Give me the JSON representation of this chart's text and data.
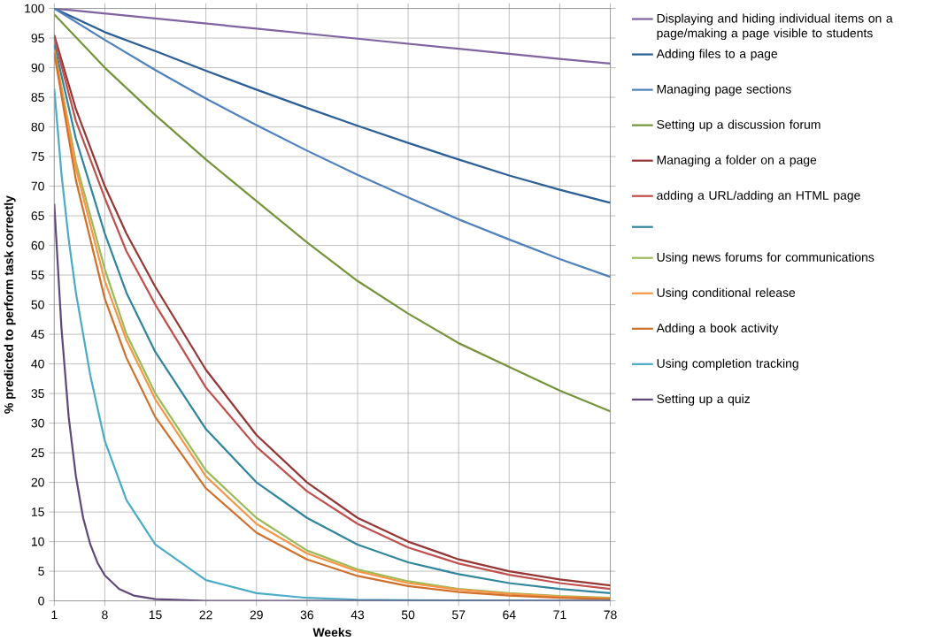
{
  "chart_data": {
    "type": "line",
    "xlabel": "Weeks",
    "ylabel": "% predicted to perform task correctly",
    "xlim": [
      1,
      78
    ],
    "xticks": [
      1,
      8,
      15,
      22,
      29,
      36,
      43,
      50,
      57,
      64,
      71,
      78
    ],
    "ylim": [
      0,
      100
    ],
    "yticks": [
      0,
      5,
      10,
      15,
      20,
      25,
      30,
      35,
      40,
      45,
      50,
      55,
      60,
      65,
      70,
      75,
      80,
      85,
      90,
      95,
      100
    ],
    "grid": true,
    "legend": "right",
    "marker": "none",
    "line_style": "solid",
    "series": [
      {
        "name": "Displaying and hiding individual items on a page/making a page visible to students",
        "color": "#8064a2",
        "x": [
          1,
          15,
          29,
          43,
          57,
          71,
          78
        ],
        "values": [
          100,
          98.3,
          96.6,
          94.9,
          93.2,
          91.5,
          90.7
        ]
      },
      {
        "name": "Adding files to a page",
        "color": "#2c5f96",
        "x": [
          1,
          8,
          15,
          22,
          29,
          36,
          43,
          50,
          57,
          64,
          71,
          78
        ],
        "values": [
          100,
          96,
          92.8,
          89.5,
          86.3,
          83.2,
          80.2,
          77.3,
          74.5,
          71.8,
          69.4,
          67.2
        ]
      },
      {
        "name": "Managing page sections",
        "color": "#4f81bd",
        "x": [
          1,
          8,
          15,
          22,
          29,
          36,
          43,
          50,
          57,
          64,
          71,
          78
        ],
        "values": [
          100,
          94.7,
          89.6,
          84.8,
          80.3,
          76,
          71.9,
          68.1,
          64.4,
          61,
          57.7,
          54.7
        ]
      },
      {
        "name": "Setting up a discussion forum",
        "color": "#77933c",
        "x": [
          1,
          8,
          15,
          22,
          29,
          36,
          43,
          50,
          57,
          64,
          71,
          78
        ],
        "values": [
          99,
          90,
          82,
          74.5,
          67.5,
          60.5,
          54,
          48.5,
          43.5,
          39.5,
          35.5,
          32
        ]
      },
      {
        "name": "Managing a folder on a page",
        "color": "#953735",
        "x": [
          1,
          4,
          8,
          11,
          15,
          22,
          29,
          36,
          43,
          50,
          57,
          64,
          71,
          78
        ],
        "values": [
          95.5,
          83,
          70,
          62,
          53,
          39,
          28,
          20,
          14,
          10,
          7,
          5,
          3.6,
          2.6
        ]
      },
      {
        "name": "adding a URL/adding an HTML page",
        "color": "#c0504d",
        "x": [
          1,
          4,
          8,
          11,
          15,
          22,
          29,
          36,
          43,
          50,
          57,
          64,
          71,
          78
        ],
        "values": [
          95,
          81,
          68,
          59,
          50,
          36,
          26,
          18.5,
          13,
          9,
          6.3,
          4.4,
          3,
          2
        ]
      },
      {
        "color": "#31859c",
        "x": [
          1,
          4,
          8,
          11,
          15,
          22,
          29,
          36,
          43,
          50,
          57,
          64,
          71,
          78
        ],
        "values": [
          94,
          78,
          62,
          52,
          42,
          29,
          20,
          14,
          9.5,
          6.5,
          4.5,
          3,
          2,
          1.3
        ]
      },
      {
        "name": "Using news forums for communications",
        "color": "#9bbb59",
        "x": [
          1,
          4,
          8,
          11,
          15,
          22,
          29,
          36,
          43,
          50,
          57,
          64,
          71,
          78
        ],
        "values": [
          93,
          74,
          56,
          45,
          35,
          22,
          14,
          8.5,
          5.3,
          3.3,
          2,
          1.3,
          0.8,
          0.5
        ]
      },
      {
        "name": "Using conditional release",
        "color": "#f79646",
        "x": [
          1,
          4,
          8,
          11,
          15,
          22,
          29,
          36,
          43,
          50,
          57,
          64,
          71,
          78
        ],
        "values": [
          93,
          73,
          54,
          44,
          34,
          21,
          13,
          8,
          5,
          3,
          1.9,
          1.2,
          0.7,
          0.4
        ]
      },
      {
        "name": "Adding a book activity",
        "color": "#d0702a",
        "x": [
          1,
          4,
          8,
          11,
          15,
          22,
          29,
          36,
          43,
          50,
          57,
          64,
          71,
          78
        ],
        "values": [
          92.5,
          71,
          51,
          41,
          31,
          19,
          11.5,
          7,
          4.2,
          2.5,
          1.5,
          0.9,
          0.5,
          0.3
        ]
      },
      {
        "name": "Using completion tracking",
        "color": "#4bacc6",
        "x": [
          1,
          2,
          3,
          4,
          6,
          8,
          11,
          15,
          22,
          29,
          36,
          43,
          50,
          78
        ],
        "values": [
          86.5,
          72,
          61,
          52,
          38,
          27,
          17,
          9.5,
          3.5,
          1.3,
          0.5,
          0.2,
          0.1,
          0
        ]
      },
      {
        "name": "Setting up a quiz",
        "color": "#5f497a",
        "x": [
          1,
          2,
          3,
          4,
          5,
          6,
          7,
          8,
          10,
          12,
          15,
          22,
          78
        ],
        "values": [
          67,
          46,
          31,
          21,
          14,
          9.5,
          6.4,
          4.3,
          2,
          0.9,
          0.3,
          0,
          0
        ]
      }
    ]
  }
}
